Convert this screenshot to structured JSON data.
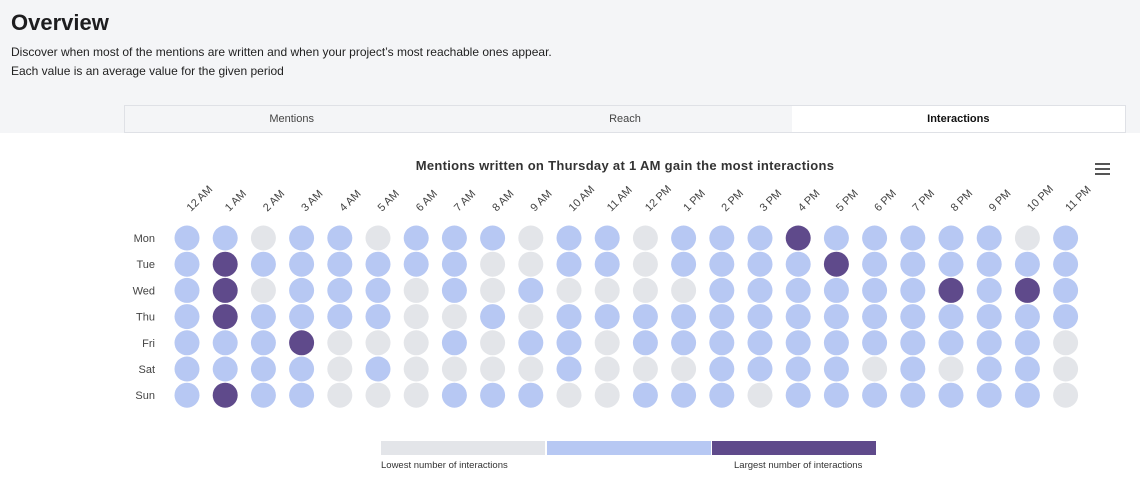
{
  "header": {
    "title": "Overview",
    "description_line1": "Discover when most of the mentions are written and when your project’s most reachable ones appear.",
    "description_line2": "Each value is an average value for the given period"
  },
  "tabs": [
    {
      "label": "Mentions",
      "active": false
    },
    {
      "label": "Reach",
      "active": false
    },
    {
      "label": "Interactions",
      "active": true
    }
  ],
  "menu_icon": "hamburger-menu-icon",
  "colors": {
    "low": "#e3e5e9",
    "mid": "#b7c8f3",
    "high": "#5f4a8b",
    "background": "#f4f5f7"
  },
  "chart_data": {
    "type": "heatmap",
    "title": "Mentions written on Thursday at 1 AM gain the most interactions",
    "x_categories": [
      "12 AM",
      "1 AM",
      "2 AM",
      "3 AM",
      "4 AM",
      "5 AM",
      "6 AM",
      "7 AM",
      "8 AM",
      "9 AM",
      "10 AM",
      "11 AM",
      "12 PM",
      "1 PM",
      "2 PM",
      "3 PM",
      "4 PM",
      "5 PM",
      "6 PM",
      "7 PM",
      "8 PM",
      "9 PM",
      "10 PM",
      "11 PM"
    ],
    "y_categories": [
      "Mon",
      "Tue",
      "Wed",
      "Thu",
      "Fri",
      "Sat",
      "Sun"
    ],
    "value_scale": "0 = lowest, 1 = medium, 2 = largest",
    "values": [
      [
        1,
        1,
        0,
        1,
        1,
        0,
        1,
        1,
        1,
        0,
        1,
        1,
        0,
        1,
        1,
        1,
        2,
        1,
        1,
        1,
        1,
        1,
        0,
        1
      ],
      [
        1,
        2,
        1,
        1,
        1,
        1,
        1,
        1,
        0,
        0,
        1,
        1,
        0,
        1,
        1,
        1,
        1,
        2,
        1,
        1,
        1,
        1,
        1,
        1
      ],
      [
        1,
        2,
        0,
        1,
        1,
        1,
        0,
        1,
        0,
        1,
        0,
        0,
        0,
        0,
        1,
        1,
        1,
        1,
        1,
        1,
        2,
        1,
        2,
        1
      ],
      [
        1,
        2,
        1,
        1,
        1,
        1,
        0,
        0,
        1,
        0,
        1,
        1,
        1,
        1,
        1,
        1,
        1,
        1,
        1,
        1,
        1,
        1,
        1,
        1
      ],
      [
        1,
        1,
        1,
        2,
        0,
        0,
        0,
        1,
        0,
        1,
        1,
        0,
        1,
        1,
        1,
        1,
        1,
        1,
        1,
        1,
        1,
        1,
        1,
        0
      ],
      [
        1,
        1,
        1,
        1,
        0,
        1,
        0,
        0,
        0,
        0,
        1,
        0,
        0,
        0,
        1,
        1,
        1,
        1,
        0,
        1,
        0,
        1,
        1,
        0
      ],
      [
        1,
        2,
        1,
        1,
        0,
        0,
        0,
        1,
        1,
        1,
        0,
        0,
        1,
        1,
        1,
        0,
        1,
        1,
        1,
        1,
        1,
        1,
        1,
        0
      ]
    ],
    "legend": {
      "low_label": "Lowest number of interactions",
      "high_label": "Largest number of interactions"
    }
  }
}
